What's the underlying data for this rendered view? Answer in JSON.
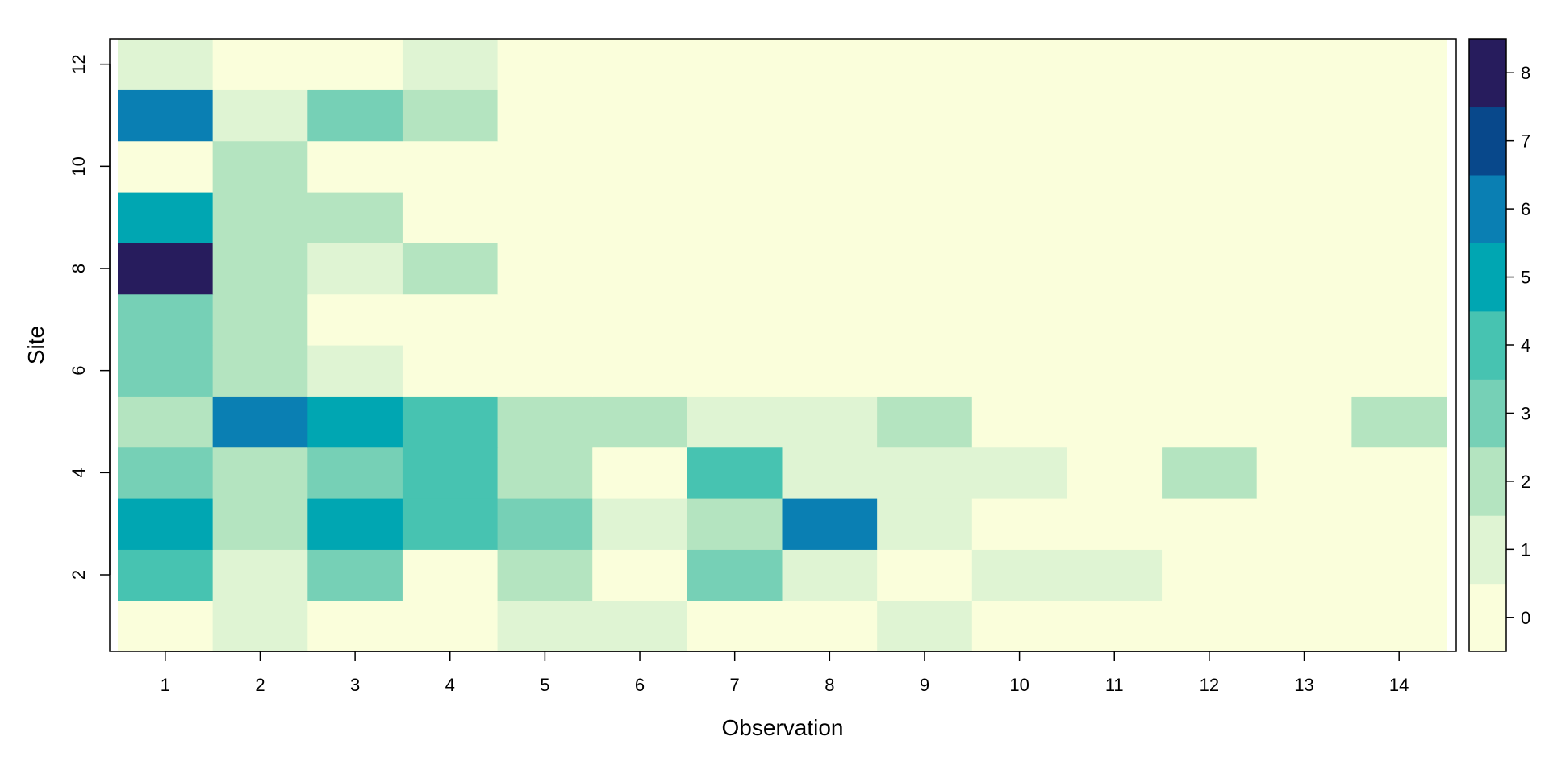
{
  "chart_data": {
    "type": "heatmap",
    "xlabel": "Observation",
    "ylabel": "Site",
    "x_categories": [
      1,
      2,
      3,
      4,
      5,
      6,
      7,
      8,
      9,
      10,
      11,
      12,
      13,
      14
    ],
    "y_categories": [
      1,
      2,
      3,
      4,
      5,
      6,
      7,
      8,
      9,
      10,
      11,
      12
    ],
    "x_ticks": [
      "1",
      "2",
      "3",
      "4",
      "5",
      "6",
      "7",
      "8",
      "9",
      "10",
      "11",
      "12",
      "13",
      "14"
    ],
    "y_ticks": [
      "2",
      "4",
      "6",
      "8",
      "10",
      "12"
    ],
    "y_tick_values": [
      2,
      4,
      6,
      8,
      10,
      12
    ],
    "values_by_site": [
      [
        0,
        1,
        0,
        0,
        1,
        1,
        0,
        0,
        1,
        0,
        0,
        0,
        0,
        0
      ],
      [
        4,
        1,
        3,
        0,
        2,
        0,
        3,
        1,
        0,
        1,
        1,
        0,
        0,
        0
      ],
      [
        5,
        2,
        5,
        4,
        3,
        1,
        2,
        6,
        1,
        0,
        0,
        0,
        0,
        0
      ],
      [
        3,
        2,
        3,
        4,
        2,
        0,
        4,
        1,
        1,
        1,
        0,
        2,
        0,
        0
      ],
      [
        2,
        6,
        5,
        4,
        2,
        2,
        1,
        1,
        2,
        0,
        0,
        0,
        0,
        2
      ],
      [
        3,
        2,
        1,
        0,
        0,
        0,
        0,
        0,
        0,
        0,
        0,
        0,
        0,
        0
      ],
      [
        3,
        2,
        0,
        0,
        0,
        0,
        0,
        0,
        0,
        0,
        0,
        0,
        0,
        0
      ],
      [
        8,
        2,
        1,
        2,
        0,
        0,
        0,
        0,
        0,
        0,
        0,
        0,
        0,
        0
      ],
      [
        5,
        2,
        2,
        0,
        0,
        0,
        0,
        0,
        0,
        0,
        0,
        0,
        0,
        0
      ],
      [
        0,
        2,
        0,
        0,
        0,
        0,
        0,
        0,
        0,
        0,
        0,
        0,
        0,
        0
      ],
      [
        6,
        1,
        3,
        2,
        0,
        0,
        0,
        0,
        0,
        0,
        0,
        0,
        0,
        0
      ],
      [
        1,
        0,
        0,
        1,
        0,
        0,
        0,
        0,
        0,
        0,
        0,
        0,
        0,
        0
      ]
    ],
    "colorbar": {
      "min": -0.5,
      "max": 8.5,
      "ticks": [
        "0",
        "1",
        "2",
        "3",
        "4",
        "5",
        "6",
        "7",
        "8"
      ],
      "tick_values": [
        0,
        1,
        2,
        3,
        4,
        5,
        6,
        7,
        8
      ],
      "colors": [
        "#fafedb",
        "#dff4d3",
        "#b4e4c0",
        "#76d0b6",
        "#47c3b1",
        "#00a6b2",
        "#0a7fb3",
        "#08488b",
        "#271c5d"
      ]
    }
  }
}
